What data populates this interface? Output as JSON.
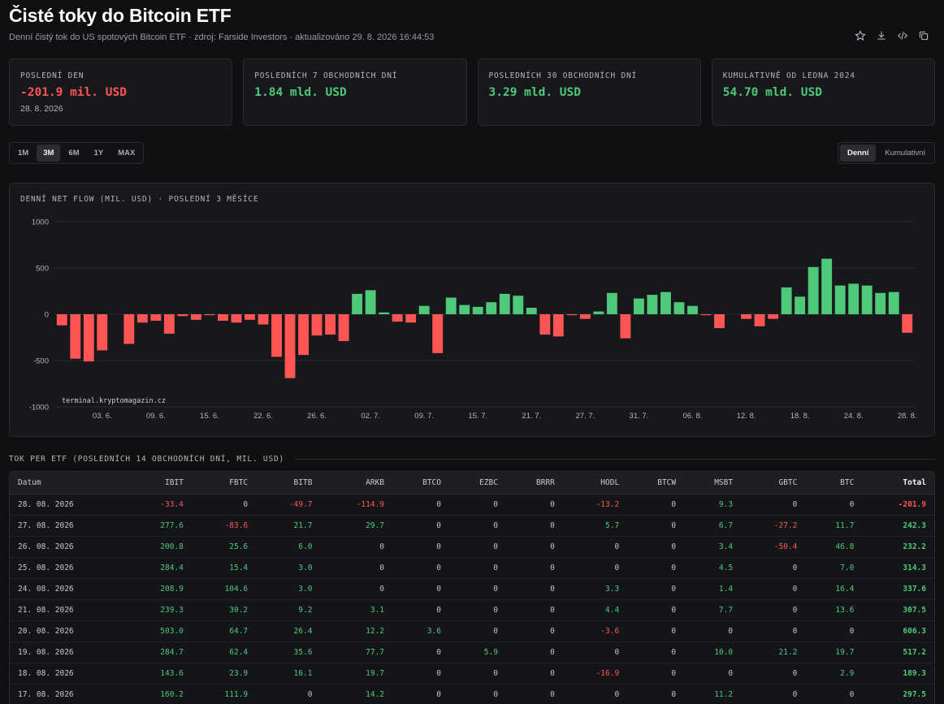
{
  "header": {
    "title": "Čisté toky do Bitcoin ETF",
    "subtitle": "Denní čistý tok do US spotových Bitcoin ETF · zdroj: Farside Investors · aktualizováno 29. 8. 2026 16:44:53",
    "tools": [
      "star-icon",
      "download-icon",
      "code-icon",
      "copy-icon"
    ]
  },
  "stats": [
    {
      "label": "POSLEDNÍ DEN",
      "value": "-201.9 mil. USD",
      "sub": "28. 8. 2026",
      "color": "#ff5555"
    },
    {
      "label": "POSLEDNÍCH 7 OBCHODNÍCH DNÍ",
      "value": "1.84 mld. USD",
      "sub": "",
      "color": "#4ec97a"
    },
    {
      "label": "POSLEDNÍCH 30 OBCHODNÍCH DNÍ",
      "value": "3.29 mld. USD",
      "sub": "",
      "color": "#4ec97a"
    },
    {
      "label": "KUMULATIVNĚ OD LEDNA 2024",
      "value": "54.70 mld. USD",
      "sub": "",
      "color": "#4ec97a"
    }
  ],
  "ranges": {
    "items": [
      "1M",
      "3M",
      "6M",
      "1Y",
      "MAX"
    ],
    "active": "3M"
  },
  "modes": {
    "items": [
      "Denní",
      "Kumulativní"
    ],
    "active": "Denní"
  },
  "chart_title": "DENNÍ NET FLOW (MIL. USD) · POSLEDNÍ 3 MĚSÍCE",
  "watermark": "terminal.kryptomagazin.cz",
  "colors": {
    "positive": "#4ec97a",
    "negative": "#ff5555",
    "grid": "#2a2b30"
  },
  "chart_data": {
    "type": "bar",
    "title": "DENNÍ NET FLOW (MIL. USD) · POSLEDNÍ 3 MĚSÍCE",
    "ylim": [
      -1000,
      1000
    ],
    "yticks": [
      1000,
      500,
      0,
      -500,
      -1000
    ],
    "grid": true,
    "xtick_labels": [
      "03. 6.",
      "09. 6.",
      "15. 6.",
      "22. 6.",
      "26. 6.",
      "02. 7.",
      "09. 7.",
      "15. 7.",
      "21. 7.",
      "27. 7.",
      "31. 7.",
      "06. 8.",
      "12. 8.",
      "18. 8.",
      "24. 8.",
      "28. 8."
    ],
    "xtick_index": [
      3,
      7,
      11,
      15,
      19,
      23,
      27,
      31,
      35,
      39,
      43,
      47,
      51,
      55,
      59,
      63
    ],
    "values": [
      -120,
      -480,
      -510,
      -390,
      0,
      -320,
      -90,
      -70,
      -210,
      -20,
      -60,
      -10,
      -70,
      -90,
      -60,
      -110,
      -460,
      -690,
      -440,
      -230,
      -220,
      -290,
      220,
      260,
      20,
      -80,
      -90,
      90,
      -420,
      180,
      100,
      80,
      130,
      220,
      200,
      70,
      -220,
      -240,
      -10,
      -50,
      30,
      230,
      -260,
      170,
      210,
      240,
      130,
      90,
      -10,
      -150,
      0,
      -50,
      -130,
      -50,
      290,
      190,
      510,
      600,
      310,
      330,
      310,
      230,
      240,
      -200
    ]
  },
  "table": {
    "title": "TOK PER ETF (POSLEDNÍCH 14 OBCHODNÍCH DNÍ, MIL. USD)",
    "columns": [
      "Datum",
      "IBIT",
      "FBTC",
      "BITB",
      "ARKB",
      "BTCO",
      "EZBC",
      "BRRR",
      "HODL",
      "BTCW",
      "MSBT",
      "GBTC",
      "BTC",
      "Total"
    ],
    "rows": [
      [
        "28. 08. 2026",
        "-33.4",
        "0",
        "-49.7",
        "-114.9",
        "0",
        "0",
        "0",
        "-13.2",
        "0",
        "9.3",
        "0",
        "0",
        "-201.9"
      ],
      [
        "27. 08. 2026",
        "277.6",
        "-83.6",
        "21.7",
        "29.7",
        "0",
        "0",
        "0",
        "5.7",
        "0",
        "6.7",
        "-27.2",
        "11.7",
        "242.3"
      ],
      [
        "26. 08. 2026",
        "200.8",
        "25.6",
        "6.0",
        "0",
        "0",
        "0",
        "0",
        "0",
        "0",
        "3.4",
        "-50.4",
        "46.8",
        "232.2"
      ],
      [
        "25. 08. 2026",
        "284.4",
        "15.4",
        "3.0",
        "0",
        "0",
        "0",
        "0",
        "0",
        "0",
        "4.5",
        "0",
        "7.0",
        "314.3"
      ],
      [
        "24. 08. 2026",
        "208.9",
        "104.6",
        "3.0",
        "0",
        "0",
        "0",
        "0",
        "3.3",
        "0",
        "1.4",
        "0",
        "16.4",
        "337.6"
      ],
      [
        "21. 08. 2026",
        "239.3",
        "30.2",
        "9.2",
        "3.1",
        "0",
        "0",
        "0",
        "4.4",
        "0",
        "7.7",
        "0",
        "13.6",
        "307.5"
      ],
      [
        "20. 08. 2026",
        "503.0",
        "64.7",
        "26.4",
        "12.2",
        "3.6",
        "0",
        "0",
        "-3.6",
        "0",
        "0",
        "0",
        "0",
        "606.3"
      ],
      [
        "19. 08. 2026",
        "284.7",
        "62.4",
        "35.6",
        "77.7",
        "0",
        "5.9",
        "0",
        "0",
        "0",
        "10.0",
        "21.2",
        "19.7",
        "517.2"
      ],
      [
        "18. 08. 2026",
        "143.6",
        "23.9",
        "16.1",
        "19.7",
        "0",
        "0",
        "0",
        "-16.9",
        "0",
        "0",
        "0",
        "2.9",
        "189.3"
      ],
      [
        "17. 08. 2026",
        "160.2",
        "111.9",
        "0",
        "14.2",
        "0",
        "0",
        "0",
        "0",
        "0",
        "11.2",
        "0",
        "0",
        "297.5"
      ]
    ]
  }
}
